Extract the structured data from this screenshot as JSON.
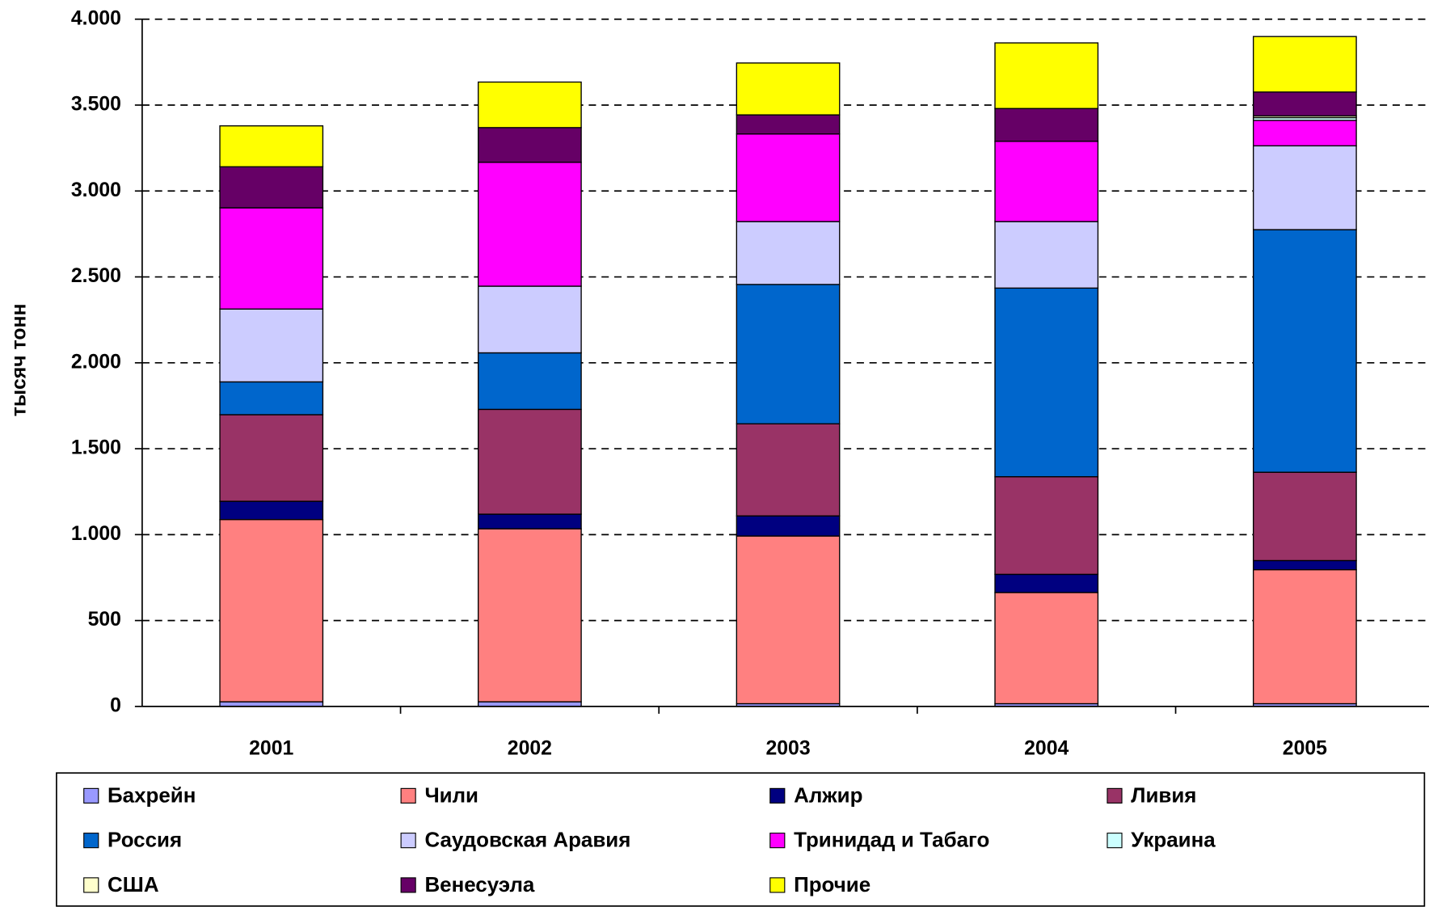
{
  "chart_data": {
    "type": "bar",
    "stacked": true,
    "y_label": "тысяч  тонн",
    "categories": [
      "2001",
      "2002",
      "2003",
      "2004",
      "2005"
    ],
    "series": [
      {
        "name": "Бахрейн",
        "color": "#9999ff",
        "values": [
          27,
          27,
          16,
          16,
          16
        ]
      },
      {
        "name": "Чили",
        "color": "#ff8080",
        "values": [
          1061,
          1007,
          976,
          647,
          780
        ]
      },
      {
        "name": "Алжир",
        "color": "#000080",
        "values": [
          106,
          85,
          117,
          106,
          53
        ]
      },
      {
        "name": "Ливия",
        "color": "#993366",
        "values": [
          504,
          610,
          536,
          568,
          514
        ]
      },
      {
        "name": "Россия",
        "color": "#0066cc",
        "values": [
          191,
          329,
          811,
          1098,
          1412
        ]
      },
      {
        "name": "Саудовская Аравия",
        "color": "#ccccff",
        "values": [
          424,
          388,
          366,
          387,
          488
        ]
      },
      {
        "name": "Тринидад и Табаго",
        "color": "#ff00ff",
        "values": [
          589,
          721,
          510,
          467,
          148
        ]
      },
      {
        "name": "Украина",
        "color": "#ccffff",
        "values": [
          0,
          0,
          0,
          0,
          16
        ]
      },
      {
        "name": "США",
        "color": "#ffffcc",
        "values": [
          0,
          0,
          0,
          0,
          10
        ]
      },
      {
        "name": "Венесуэла",
        "color": "#660066",
        "values": [
          239,
          202,
          111,
          191,
          139
        ]
      },
      {
        "name": "Прочие",
        "color": "#ffff00",
        "values": [
          238,
          265,
          302,
          382,
          323
        ]
      }
    ],
    "ylim": [
      0,
      4000
    ],
    "yticks": [
      0,
      500,
      {
        "value": 1000,
        "label": "1.000"
      },
      {
        "value": 1500,
        "label": "1.500"
      },
      {
        "value": 2000,
        "label": "2.000"
      },
      {
        "value": 2500,
        "label": "2.500"
      },
      {
        "value": 3000,
        "label": "3.000"
      },
      {
        "value": 3500,
        "label": "3.500"
      },
      {
        "value": 4000,
        "label": "4.000"
      }
    ],
    "grid": true,
    "legend": "bottom"
  }
}
